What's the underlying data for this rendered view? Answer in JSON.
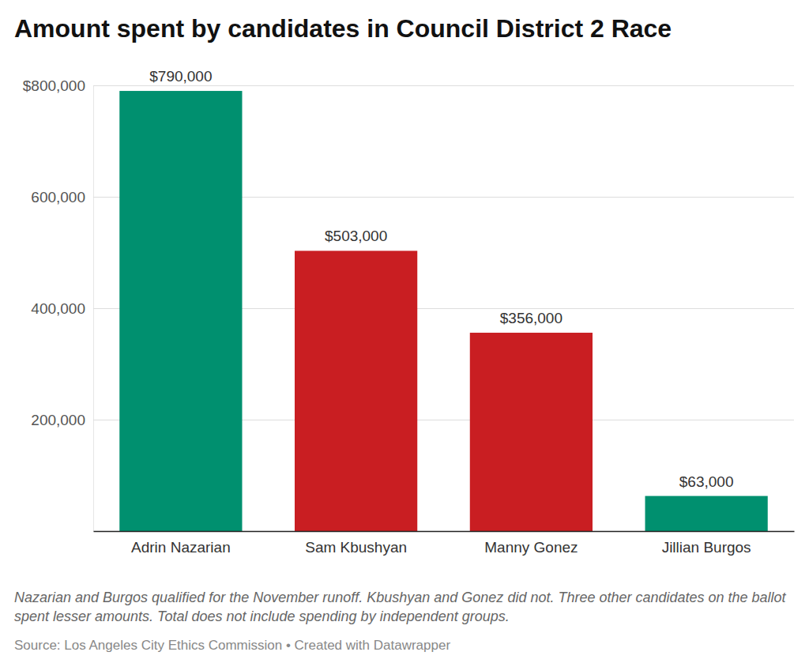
{
  "chart_data": {
    "type": "bar",
    "title": "Amount spent by candidates in Council District 2 Race",
    "categories": [
      "Adrin Nazarian",
      "Sam Kbushyan",
      "Manny Gonez",
      "Jillian Burgos"
    ],
    "values": [
      790000,
      503000,
      356000,
      63000
    ],
    "value_labels": [
      "$790,000",
      "$503,000",
      "$356,000",
      "$63,000"
    ],
    "colors": [
      "#00906f",
      "#c91e22",
      "#c91e22",
      "#00906f"
    ],
    "ylim": [
      0,
      800000
    ],
    "yticks": [
      {
        "value": 200000,
        "label": "200,000"
      },
      {
        "value": 400000,
        "label": "400,000"
      },
      {
        "value": 600000,
        "label": "600,000"
      },
      {
        "value": 800000,
        "label": "$800,000"
      }
    ],
    "grid": true,
    "data_labels": true,
    "note": "Nazarian and Burgos qualified for the November runoff. Kbushyan and Gonez did not. Three other candidates on the ballot spent lesser amounts. Total does not include spending by independent groups.",
    "source": "Source: Los Angeles City Ethics Commission • Created with Datawrapper"
  }
}
